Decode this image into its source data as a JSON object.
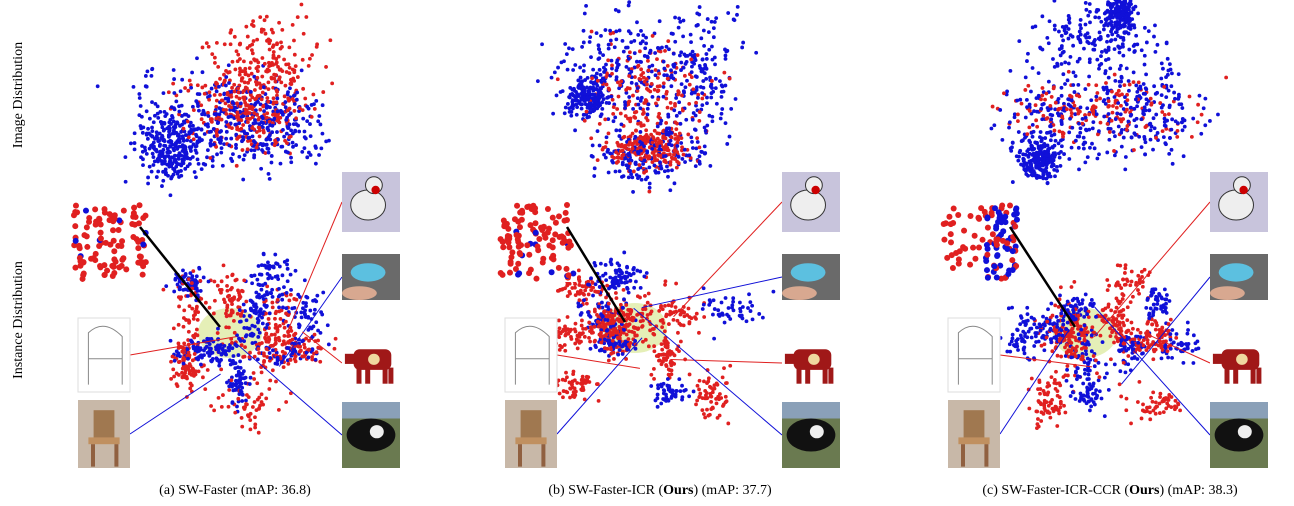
{
  "row_labels": [
    "Image Distribution",
    "Instance Distribution"
  ],
  "panels": [
    {
      "caption": [
        "(a) SW-Faster (mAP: 36.8)"
      ]
    },
    {
      "caption": [
        "(b) SW-Faster-ICR (",
        "Ours",
        ") (mAP: 37.7)"
      ]
    },
    {
      "caption": [
        "(c) SW-Faster-ICR-CCR (",
        "Ours",
        ") (mAP: 38.3)"
      ]
    }
  ]
}
